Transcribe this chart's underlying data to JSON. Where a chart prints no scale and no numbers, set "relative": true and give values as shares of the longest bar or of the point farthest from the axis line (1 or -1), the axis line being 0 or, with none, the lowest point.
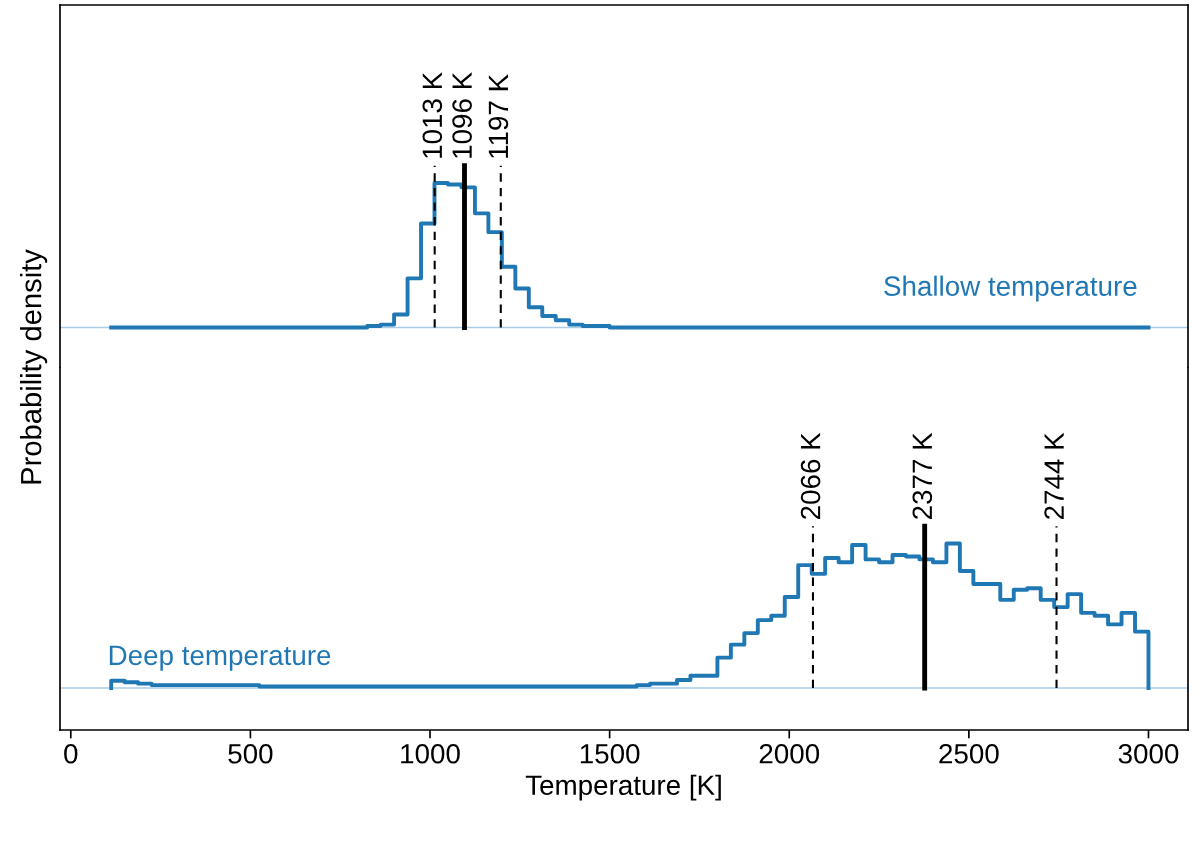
{
  "chart_data": [
    {
      "type": "step",
      "relative": true,
      "ylabel": "Probability density",
      "xlim": [
        -30,
        3110
      ],
      "xticks": [
        0,
        500,
        1000,
        1500,
        2000,
        2500,
        3000
      ],
      "tick_labels": false,
      "x": [
        112.5,
        150,
        187.5,
        225,
        262.5,
        300,
        337.5,
        375,
        412.5,
        450,
        487.5,
        525,
        562.5,
        600,
        637.5,
        675,
        712.5,
        750,
        787.5,
        825,
        862.5,
        900,
        937.5,
        975,
        1012.5,
        1050,
        1087.5,
        1125,
        1162.5,
        1200,
        1237.5,
        1275,
        1312.5,
        1350,
        1387.5,
        1425,
        1462.5,
        1500,
        1537.5,
        1575,
        1612.5,
        1650,
        1687.5,
        1725,
        1762.5,
        1800,
        1837.5,
        1875,
        1912.5,
        1950,
        1987.5,
        2025,
        2062.5,
        2100,
        2137.5,
        2175,
        2212.5,
        2250,
        2287.5,
        2325,
        2362.5,
        2400,
        2437.5,
        2475,
        2512.5,
        2550,
        2587.5,
        2625,
        2662.5,
        2700,
        2737.5,
        2775,
        2812.5,
        2850,
        2887.5,
        2925,
        2962.5,
        3000,
        3000
      ],
      "series": [
        {
          "name": "Shallow temperature",
          "color": "#1f77b4",
          "values": [
            0,
            0,
            0,
            0,
            0,
            0,
            0,
            0,
            0,
            0,
            0,
            0,
            0,
            0,
            0,
            0,
            0,
            0,
            0,
            0,
            0.01,
            0.02,
            0.09,
            0.34,
            0.72,
            1.0,
            0.99,
            0.97,
            0.79,
            0.66,
            0.42,
            0.27,
            0.14,
            0.08,
            0.05,
            0.02,
            0.01,
            0.01,
            0,
            0,
            0,
            0,
            0,
            0,
            0,
            0,
            0,
            0,
            0,
            0,
            0,
            0,
            0,
            0,
            0,
            0,
            0,
            0,
            0,
            0,
            0,
            0,
            0,
            0,
            0,
            0,
            0,
            0,
            0,
            0,
            0,
            0,
            0,
            0,
            0,
            0,
            0,
            0,
            0
          ]
        }
      ],
      "ref_lines": [
        {
          "axis": "x",
          "value": 1013,
          "label": "1013 K",
          "color": "#000000",
          "line_style": "dashed"
        },
        {
          "axis": "x",
          "value": 1096,
          "label": "1096 K",
          "color": "#000000",
          "line_style": "solid"
        },
        {
          "axis": "x",
          "value": 1197,
          "label": "1197 K",
          "color": "#000000",
          "line_style": "dashed"
        }
      ]
    },
    {
      "type": "step",
      "relative": true,
      "xlabel": "Temperature [K]",
      "xlim": [
        -30,
        3110
      ],
      "xticks": [
        0,
        500,
        1000,
        1500,
        2000,
        2500,
        3000
      ],
      "x": [
        112.5,
        150,
        187.5,
        225,
        262.5,
        300,
        337.5,
        375,
        412.5,
        450,
        487.5,
        525,
        562.5,
        600,
        637.5,
        675,
        712.5,
        750,
        787.5,
        825,
        862.5,
        900,
        937.5,
        975,
        1012.5,
        1050,
        1087.5,
        1125,
        1162.5,
        1200,
        1237.5,
        1275,
        1312.5,
        1350,
        1387.5,
        1425,
        1462.5,
        1500,
        1537.5,
        1575,
        1612.5,
        1650,
        1687.5,
        1725,
        1762.5,
        1800,
        1837.5,
        1875,
        1912.5,
        1950,
        1987.5,
        2025,
        2062.5,
        2100,
        2137.5,
        2175,
        2212.5,
        2250,
        2287.5,
        2325,
        2362.5,
        2400,
        2437.5,
        2475,
        2512.5,
        2550,
        2587.5,
        2625,
        2662.5,
        2700,
        2737.5,
        2775,
        2812.5,
        2850,
        2887.5,
        2925,
        2962.5,
        3000,
        3000
      ],
      "series": [
        {
          "name": "Deep temperature",
          "color": "#1f77b4",
          "values": [
            0,
            0.05,
            0.04,
            0.03,
            0.02,
            0.02,
            0.02,
            0.02,
            0.02,
            0.02,
            0.02,
            0.02,
            0.01,
            0.01,
            0.01,
            0.01,
            0.01,
            0.01,
            0.01,
            0.01,
            0.01,
            0.01,
            0.01,
            0.01,
            0.01,
            0.01,
            0.01,
            0.01,
            0.01,
            0.01,
            0.01,
            0.01,
            0.01,
            0.01,
            0.01,
            0.01,
            0.01,
            0.01,
            0.01,
            0.01,
            0.02,
            0.03,
            0.03,
            0.055,
            0.085,
            0.085,
            0.21,
            0.3,
            0.38,
            0.47,
            0.5,
            0.63,
            0.85,
            0.79,
            0.9,
            0.87,
            0.99,
            0.89,
            0.87,
            0.92,
            0.91,
            0.89,
            0.87,
            1.0,
            0.81,
            0.72,
            0.72,
            0.61,
            0.68,
            0.69,
            0.61,
            0.56,
            0.65,
            0.52,
            0.5,
            0.44,
            0.52,
            0.39,
            0
          ]
        }
      ],
      "ref_lines": [
        {
          "axis": "x",
          "value": 2066,
          "label": "2066 K",
          "color": "#000000",
          "line_style": "dashed"
        },
        {
          "axis": "x",
          "value": 2377,
          "label": "2377 K",
          "color": "#000000",
          "line_style": "solid"
        },
        {
          "axis": "x",
          "value": 2744,
          "label": "2744 K",
          "color": "#000000",
          "line_style": "dashed"
        }
      ]
    }
  ]
}
